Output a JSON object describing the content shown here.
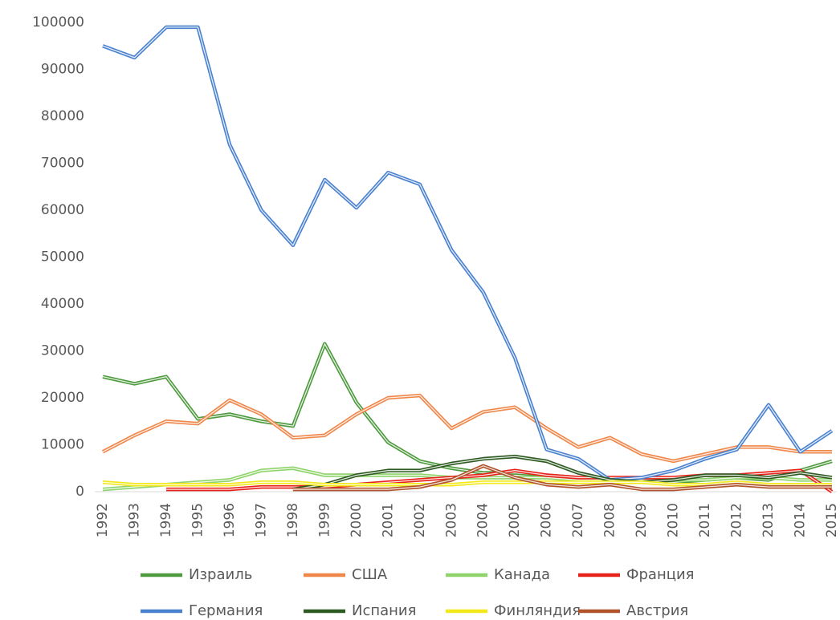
{
  "chart_data": {
    "type": "line",
    "categories": [
      "1992",
      "1993",
      "1994",
      "1995",
      "1996",
      "1997",
      "1998",
      "1999",
      "2000",
      "2001",
      "2002",
      "2003",
      "2004",
      "2005",
      "2006",
      "2007",
      "2008",
      "2009",
      "2010",
      "2011",
      "2012",
      "2013",
      "2014",
      "2015"
    ],
    "ylim": [
      0,
      100000
    ],
    "yticks": [
      0,
      10000,
      20000,
      30000,
      40000,
      50000,
      60000,
      70000,
      80000,
      90000,
      100000
    ],
    "grid": false,
    "legend_position": "bottom",
    "series": [
      {
        "name": "Израиль",
        "color": "#4e9a3e",
        "values": [
          24500,
          23000,
          24500,
          15500,
          16500,
          15000,
          14000,
          31500,
          19000,
          10500,
          6500,
          5000,
          4000,
          4000,
          3500,
          3000,
          2500,
          2500,
          2000,
          2500,
          3000,
          2500,
          4500,
          6500
        ]
      },
      {
        "name": "США",
        "color": "#f0874a",
        "values": [
          8500,
          12000,
          15000,
          14500,
          19500,
          16500,
          11500,
          12000,
          16500,
          20000,
          20500,
          13500,
          17000,
          18000,
          13500,
          9500,
          11500,
          8000,
          6500,
          8000,
          9500,
          9500,
          8500,
          8500
        ]
      },
      {
        "name": "Канада",
        "color": "#8ed46a",
        "values": [
          500,
          1000,
          1500,
          2000,
          2500,
          4500,
          5000,
          3500,
          3500,
          3500,
          3500,
          3000,
          3000,
          3000,
          3000,
          2500,
          2500,
          2500,
          2500,
          2500,
          3000,
          3000,
          2500,
          2500
        ]
      },
      {
        "name": "Франция",
        "color": "#e8221a",
        "values": [
          null,
          null,
          500,
          500,
          500,
          1000,
          1000,
          1000,
          1500,
          2000,
          2500,
          3000,
          3500,
          4500,
          3500,
          3000,
          3000,
          3000,
          3000,
          3500,
          3500,
          4000,
          4500,
          0
        ]
      },
      {
        "name": "Германия",
        "color": "#4a82d0",
        "values": [
          95000,
          92500,
          99000,
          99000,
          74000,
          60000,
          52500,
          66500,
          60500,
          68000,
          65500,
          51500,
          42500,
          28500,
          9000,
          7000,
          2500,
          3000,
          4500,
          7000,
          9000,
          18500,
          8500,
          13000
        ]
      },
      {
        "name": "Испания",
        "color": "#2d5a20",
        "values": [
          null,
          null,
          null,
          null,
          null,
          null,
          500,
          1500,
          3500,
          4500,
          4500,
          6000,
          7000,
          7500,
          6500,
          4000,
          2500,
          2000,
          2500,
          3500,
          3500,
          3000,
          4000,
          3000
        ]
      },
      {
        "name": "Финляндия",
        "color": "#f2e81a",
        "values": [
          2000,
          1500,
          1500,
          1500,
          1500,
          2000,
          2000,
          1500,
          1500,
          1500,
          1500,
          1500,
          2000,
          2000,
          2000,
          2000,
          2000,
          2000,
          1500,
          1500,
          2000,
          1500,
          1500,
          1500
        ]
      },
      {
        "name": "Австрия",
        "color": "#b0522a",
        "values": [
          null,
          null,
          null,
          null,
          null,
          null,
          500,
          500,
          500,
          500,
          1000,
          2500,
          5500,
          3000,
          1500,
          1000,
          1500,
          500,
          500,
          1000,
          1500,
          1000,
          1000,
          1000
        ]
      }
    ]
  }
}
